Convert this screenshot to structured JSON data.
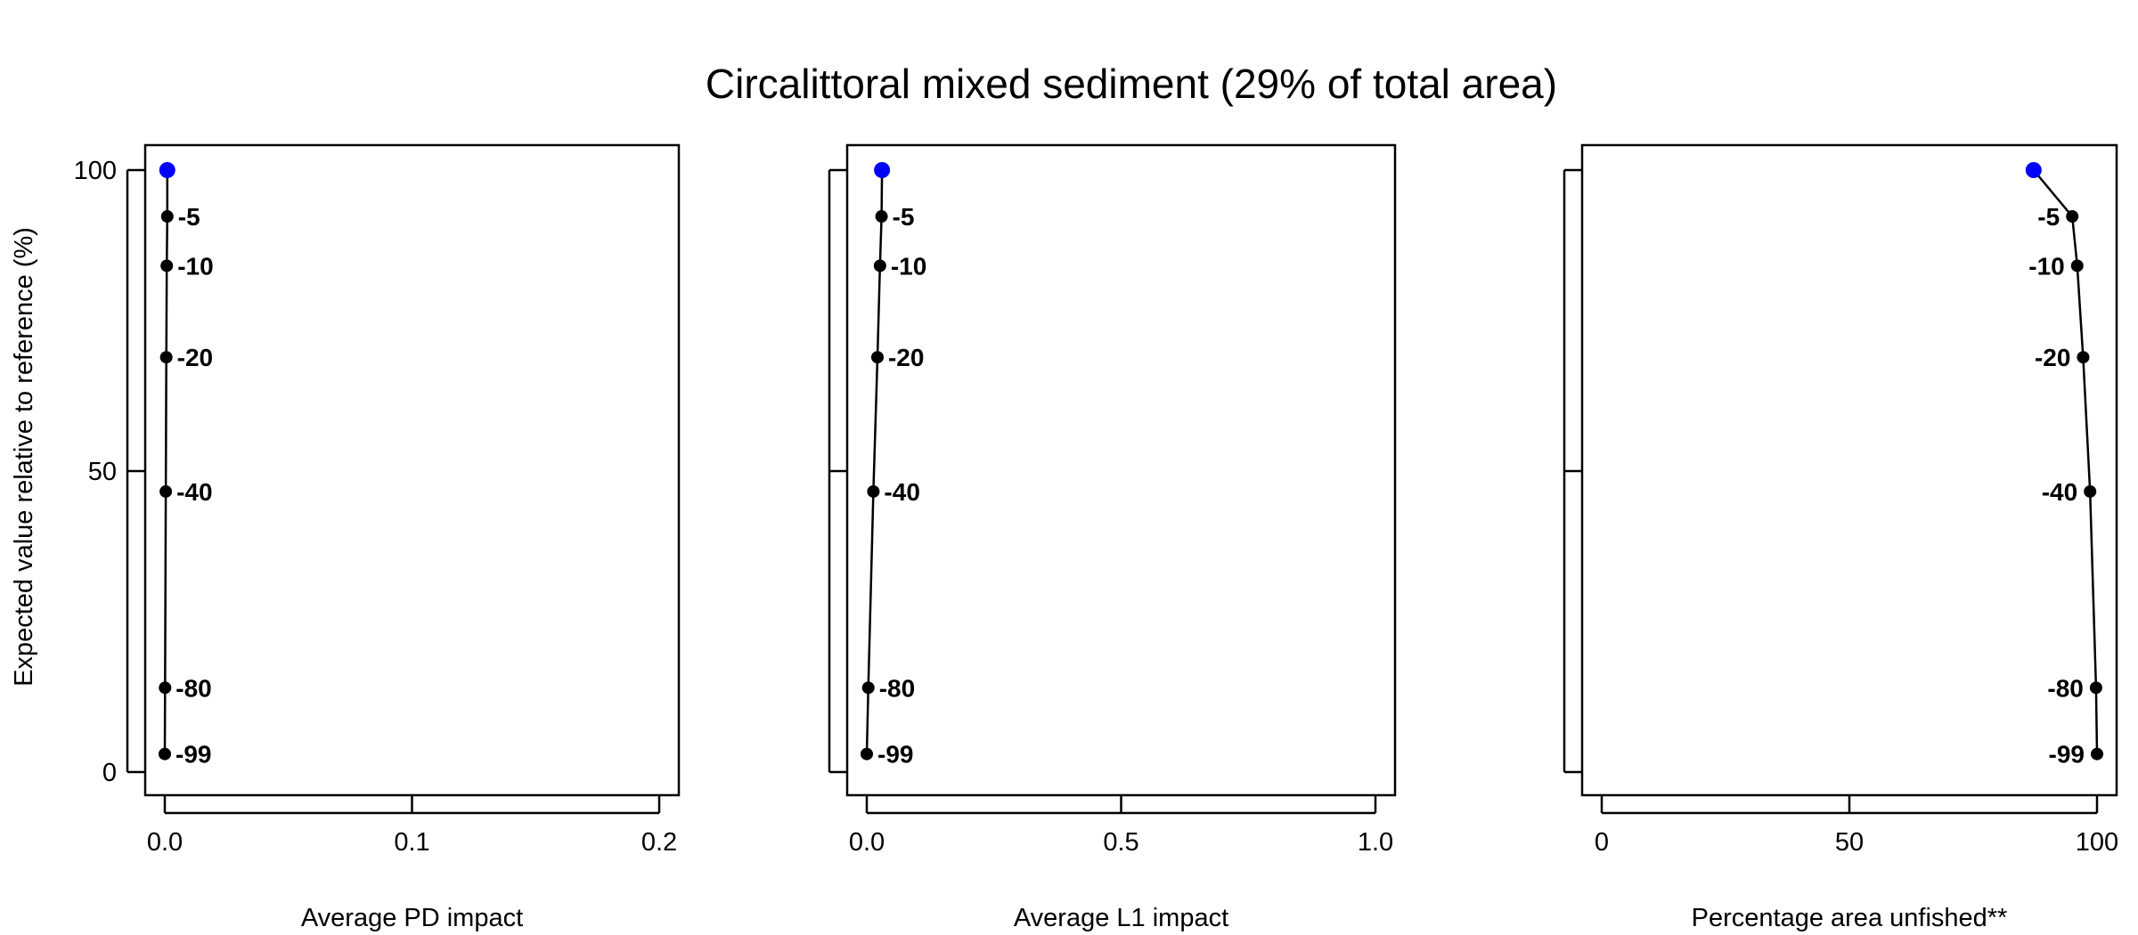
{
  "title": "Circalittoral mixed sediment (29% of total area)",
  "ylabel": "Expected value relative to reference (%)",
  "chart_data": [
    {
      "type": "line",
      "xlabel": "Average PD impact",
      "xlim": [
        0,
        0.2
      ],
      "ylim": [
        0,
        100
      ],
      "xticks": [
        0.0,
        0.1,
        0.2
      ],
      "xtick_labels": [
        "0.0",
        "0.1",
        "0.2"
      ],
      "yticks": [
        0,
        50,
        100
      ],
      "ytick_labels": [
        "0",
        "50",
        "100"
      ],
      "highlight_color": "#0000ff",
      "points": [
        {
          "x": 0.001,
          "y": 100,
          "label": "",
          "highlight": true
        },
        {
          "x": 0.001,
          "y": 92.3,
          "label": "-5"
        },
        {
          "x": 0.0008,
          "y": 84.1,
          "label": "-10"
        },
        {
          "x": 0.0006,
          "y": 68.9,
          "label": "-20"
        },
        {
          "x": 0.0004,
          "y": 46.6,
          "label": "-40"
        },
        {
          "x": 0.0001,
          "y": 14.0,
          "label": "-80"
        },
        {
          "x": 0.0,
          "y": 3.0,
          "label": "-99"
        }
      ]
    },
    {
      "type": "line",
      "xlabel": "Average L1 impact",
      "xlim": [
        0,
        1.0
      ],
      "ylim": [
        0,
        100
      ],
      "xticks": [
        0.0,
        0.5,
        1.0
      ],
      "xtick_labels": [
        "0.0",
        "0.5",
        "1.0"
      ],
      "yticks": [
        0,
        50,
        100
      ],
      "ytick_labels": [
        "",
        "",
        ""
      ],
      "highlight_color": "#0000ff",
      "points": [
        {
          "x": 0.03,
          "y": 100,
          "label": "",
          "highlight": true
        },
        {
          "x": 0.029,
          "y": 92.3,
          "label": "-5"
        },
        {
          "x": 0.026,
          "y": 84.1,
          "label": "-10"
        },
        {
          "x": 0.021,
          "y": 68.9,
          "label": "-20"
        },
        {
          "x": 0.013,
          "y": 46.6,
          "label": "-40"
        },
        {
          "x": 0.003,
          "y": 14.0,
          "label": "-80"
        },
        {
          "x": 0.0,
          "y": 3.0,
          "label": "-99"
        }
      ]
    },
    {
      "type": "line",
      "xlabel": "Percentage area unfished**",
      "xlim": [
        0,
        100
      ],
      "ylim": [
        0,
        100
      ],
      "xticks": [
        0,
        50,
        100
      ],
      "xtick_labels": [
        "0",
        "50",
        "100"
      ],
      "yticks": [
        0,
        50,
        100
      ],
      "ytick_labels": [
        "",
        "",
        ""
      ],
      "highlight_color": "#0000ff",
      "label_side": "left",
      "points": [
        {
          "x": 87.2,
          "y": 100,
          "label": "",
          "highlight": true
        },
        {
          "x": 95.0,
          "y": 92.3,
          "label": "-5"
        },
        {
          "x": 96.0,
          "y": 84.1,
          "label": "-10"
        },
        {
          "x": 97.2,
          "y": 68.9,
          "label": "-20"
        },
        {
          "x": 98.6,
          "y": 46.6,
          "label": "-40"
        },
        {
          "x": 99.8,
          "y": 14.0,
          "label": "-80"
        },
        {
          "x": 100.0,
          "y": 3.0,
          "label": "-99"
        }
      ]
    }
  ]
}
